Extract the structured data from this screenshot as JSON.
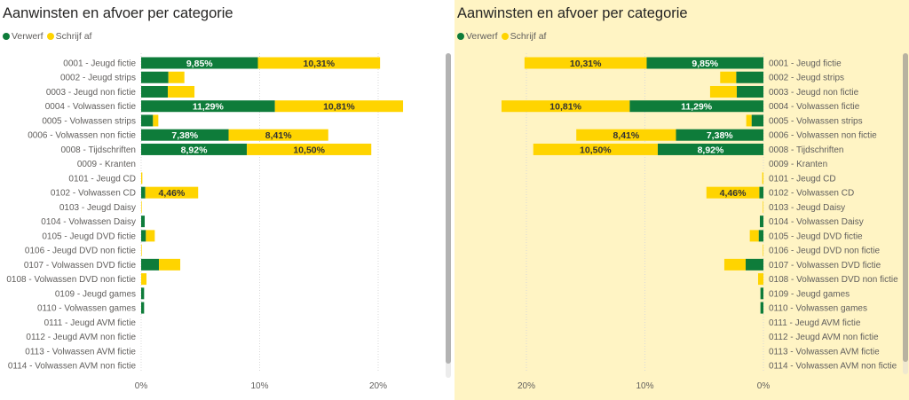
{
  "colors": {
    "verwerf": "#0E7C3A",
    "schrijf_af": "#FFD400",
    "label_text": "#605E5C",
    "grid": "#D9D9D9",
    "right_panel_bg": "#FFF4C4"
  },
  "panels": [
    {
      "title": "Aanwinsten en afvoer per categorie",
      "legend": [
        {
          "label": "Verwerf",
          "color": "#0E7C3A"
        },
        {
          "label": "Schrijf af",
          "color": "#FFD400"
        }
      ],
      "orientation": "left-to-right"
    },
    {
      "title": "Aanwinsten en afvoer per categorie",
      "legend": [
        {
          "label": "Verwerf",
          "color": "#0E7C3A"
        },
        {
          "label": "Schrijf af",
          "color": "#FFD400"
        }
      ],
      "orientation": "right-to-left"
    }
  ],
  "chart_data": [
    {
      "type": "bar",
      "stacked": true,
      "orientation": "horizontal",
      "title": "Aanwinsten en afvoer per categorie",
      "xlabel": "",
      "ylabel": "",
      "xlim": [
        0,
        25
      ],
      "x_ticks": [
        0,
        10,
        20
      ],
      "x_tick_labels": [
        "0%",
        "10%",
        "20%"
      ],
      "grid": true,
      "legend_position": "top-left",
      "categories": [
        "0001 - Jeugd fictie",
        "0002 - Jeugd strips",
        "0003 - Jeugd non fictie",
        "0004 - Volwassen fictie",
        "0005 - Volwassen strips",
        "0006 - Volwassen non fictie",
        "0008 - Tijdschriften",
        "0009 - Kranten",
        "0101 - Jeugd CD",
        "0102 - Volwassen CD",
        "0103 - Jeugd Daisy",
        "0104 - Volwassen Daisy",
        "0105 - Jeugd DVD fictie",
        "0106 - Jeugd DVD non fictie",
        "0107 - Volwassen DVD fictie",
        "0108 - Volwassen DVD non fictie",
        "0109 - Jeugd games",
        "0110 - Volwassen games",
        "0111 - Jeugd AVM fictie",
        "0112 - Jeugd AVM non fictie",
        "0113 - Volwassen AVM fictie",
        "0114 - Volwassen AVM non fictie"
      ],
      "series": [
        {
          "name": "Verwerf",
          "values": [
            9.85,
            2.3,
            2.25,
            11.29,
            1.0,
            7.38,
            8.92,
            0,
            0,
            0.35,
            0,
            0.3,
            0.4,
            0,
            1.5,
            0,
            0.25,
            0.25,
            0,
            0,
            0,
            0
          ],
          "labels": [
            "9,85%",
            "",
            "",
            "11,29%",
            "",
            "7,38%",
            "8,92%",
            "",
            "",
            "",
            "",
            "",
            "",
            "",
            "",
            "",
            "",
            "",
            "",
            "",
            "",
            ""
          ]
        },
        {
          "name": "Schrijf af",
          "values": [
            10.31,
            1.35,
            2.25,
            10.81,
            0.45,
            8.41,
            10.5,
            0,
            0.1,
            4.46,
            0.05,
            0,
            0.75,
            0.05,
            1.8,
            0.45,
            0,
            0,
            0,
            0,
            0,
            0
          ],
          "labels": [
            "10,31%",
            "",
            "",
            "10,81%",
            "",
            "8,41%",
            "10,50%",
            "",
            "",
            "4,46%",
            "",
            "",
            "",
            "",
            "",
            "",
            "",
            "",
            "",
            "",
            "",
            ""
          ]
        }
      ]
    },
    {
      "type": "bar",
      "stacked": true,
      "orientation": "horizontal-reversed",
      "title": "Aanwinsten en afvoer per categorie",
      "xlabel": "",
      "ylabel": "",
      "xlim": [
        0,
        25
      ],
      "x_ticks": [
        20,
        10,
        0
      ],
      "x_tick_labels": [
        "20%",
        "10%",
        "0%"
      ],
      "grid": true,
      "legend_position": "top-left",
      "categories": [
        "0001 - Jeugd fictie",
        "0002 - Jeugd strips",
        "0003 - Jeugd non fictie",
        "0004 - Volwassen fictie",
        "0005 - Volwassen strips",
        "0006 - Volwassen non fictie",
        "0008 - Tijdschriften",
        "0009 - Kranten",
        "0101 - Jeugd CD",
        "0102 - Volwassen CD",
        "0103 - Jeugd Daisy",
        "0104 - Volwassen Daisy",
        "0105 - Jeugd DVD fictie",
        "0106 - Jeugd DVD non fictie",
        "0107 - Volwassen DVD fictie",
        "0108 - Volwassen DVD non fictie",
        "0109 - Jeugd games",
        "0110 - Volwassen games",
        "0111 - Jeugd AVM fictie",
        "0112 - Jeugd AVM non fictie",
        "0113 - Volwassen AVM fictie",
        "0114 - Volwassen AVM non fictie"
      ],
      "series": [
        {
          "name": "Verwerf",
          "values": [
            9.85,
            2.3,
            2.25,
            11.29,
            1.0,
            7.38,
            8.92,
            0,
            0,
            0.35,
            0,
            0.3,
            0.4,
            0,
            1.5,
            0,
            0.25,
            0.25,
            0,
            0,
            0,
            0
          ],
          "labels": [
            "9,85%",
            "",
            "",
            "11,29%",
            "",
            "7,38%",
            "8,92%",
            "",
            "",
            "",
            "",
            "",
            "",
            "",
            "",
            "",
            "",
            "",
            "",
            "",
            "",
            ""
          ]
        },
        {
          "name": "Schrijf af",
          "values": [
            10.31,
            1.35,
            2.25,
            10.81,
            0.45,
            8.41,
            10.5,
            0,
            0.1,
            4.46,
            0.05,
            0,
            0.75,
            0.05,
            1.8,
            0.45,
            0,
            0,
            0,
            0,
            0,
            0
          ],
          "labels": [
            "10,31%",
            "",
            "",
            "10,81%",
            "",
            "8,41%",
            "10,50%",
            "",
            "",
            "4,46%",
            "",
            "",
            "",
            "",
            "",
            "",
            "",
            "",
            "",
            "",
            "",
            ""
          ]
        }
      ]
    }
  ]
}
